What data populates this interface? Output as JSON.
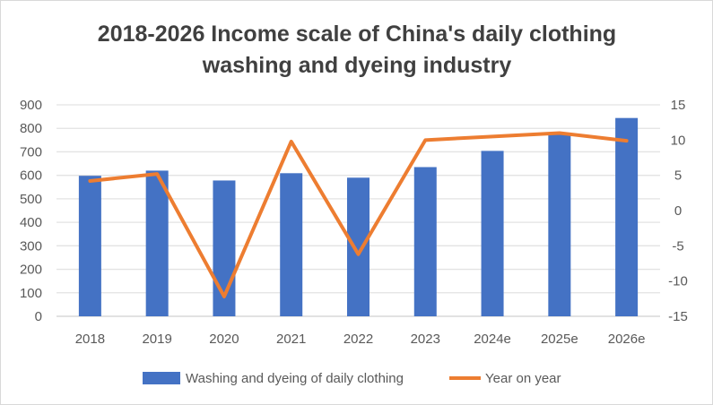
{
  "chart_data": {
    "type": "bar+line",
    "title_lines": [
      "2018-2026 Income scale of China's daily clothing",
      "washing and dyeing industry"
    ],
    "categories": [
      "2018",
      "2019",
      "2020",
      "2021",
      "2022",
      "2023",
      "2024e",
      "2025e",
      "2026e"
    ],
    "series": [
      {
        "name": "Washing and dyeing of daily clothing",
        "type": "bar",
        "axis": "left",
        "color": "#4472C4",
        "values": [
          598,
          620,
          578,
          609,
          590,
          635,
          704,
          778,
          844
        ]
      },
      {
        "name": "Year on year",
        "type": "line",
        "axis": "right",
        "color": "#ED7D31",
        "values": [
          4.2,
          5.2,
          -12.2,
          9.8,
          -6.2,
          10.0,
          10.5,
          11.0,
          9.9
        ]
      }
    ],
    "left_axis": {
      "range": [
        0,
        900
      ],
      "ticks": [
        "0",
        "100",
        "200",
        "300",
        "400",
        "500",
        "600",
        "700",
        "800",
        "900"
      ]
    },
    "right_axis": {
      "range": [
        -15,
        15
      ],
      "ticks": [
        "-15",
        "-10",
        "-5",
        "0",
        "5",
        "10",
        "15"
      ]
    },
    "grid": true,
    "legend": "bottom"
  }
}
